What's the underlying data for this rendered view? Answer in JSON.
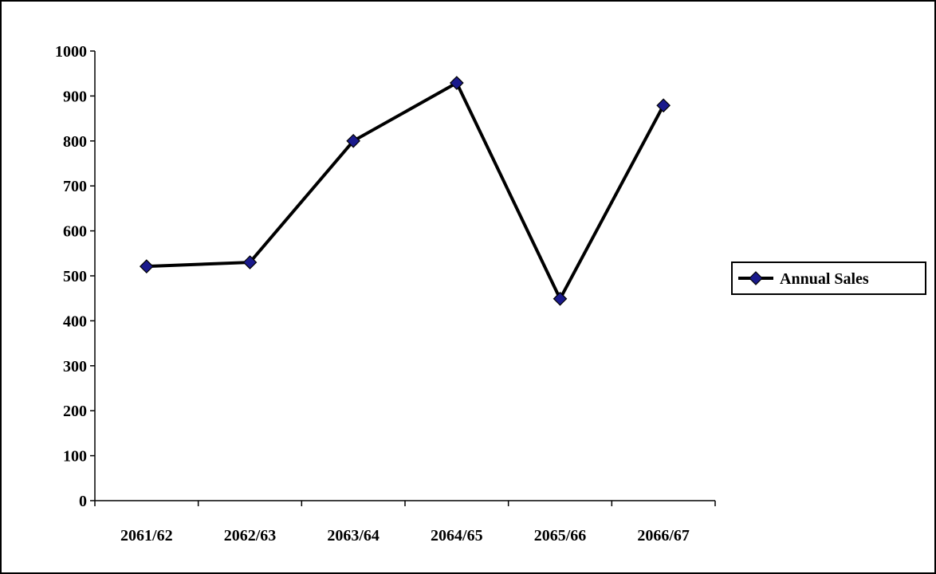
{
  "chart_data": {
    "type": "line",
    "categories": [
      "2061/62",
      "2062/63",
      "2063/64",
      "2064/65",
      "2065/66",
      "2066/67"
    ],
    "series": [
      {
        "name": "Annual Sales",
        "values": [
          521,
          530,
          800,
          929,
          449,
          879
        ],
        "line_color": "#000000",
        "marker_color": "#1a1a8c",
        "marker": "diamond"
      }
    ],
    "title": "",
    "xlabel": "",
    "ylabel": "",
    "ylim": [
      0,
      1000
    ],
    "yticks": [
      0,
      100,
      200,
      300,
      400,
      500,
      600,
      700,
      800,
      900,
      1000
    ],
    "grid": false,
    "legend_position": "right"
  }
}
